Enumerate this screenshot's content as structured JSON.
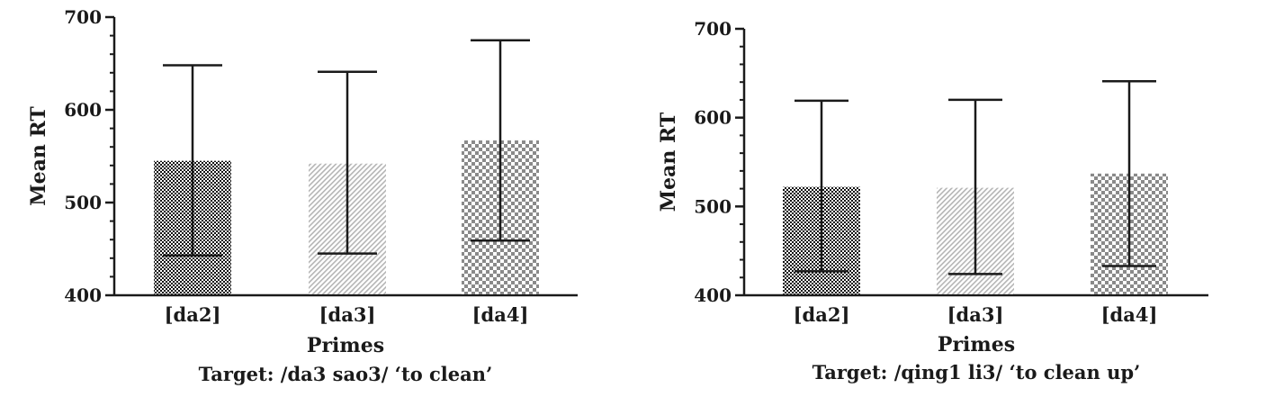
{
  "chart_data": [
    {
      "type": "bar",
      "title": "Target: /da3 sao3/ ‘to clean’",
      "xlabel": "Primes",
      "ylabel": "Mean RT",
      "categories": [
        "[da2]",
        "[da3]",
        "[da4]"
      ],
      "ylim": [
        400,
        700
      ],
      "yticks": [
        400,
        500,
        600,
        700
      ],
      "series": [
        {
          "values": [
            545,
            542,
            567
          ],
          "error_low": [
            443,
            445,
            459
          ],
          "error_high": [
            648,
            641,
            675
          ],
          "patterns": [
            "fine-check",
            "diagonal-hatch",
            "coarse-check"
          ]
        }
      ],
      "grid": false
    },
    {
      "type": "bar",
      "title": "Target: /qing1 li3/ ‘to clean up’",
      "xlabel": "Primes",
      "ylabel": "Mean RT",
      "categories": [
        "[da2]",
        "[da3]",
        "[da4]"
      ],
      "ylim": [
        400,
        700
      ],
      "yticks": [
        400,
        500,
        600,
        700
      ],
      "series": [
        {
          "values": [
            522,
            521,
            537
          ],
          "error_low": [
            427,
            424,
            433
          ],
          "error_high": [
            619,
            620,
            641
          ],
          "patterns": [
            "fine-check",
            "diagonal-hatch",
            "coarse-check"
          ]
        }
      ],
      "grid": false
    }
  ]
}
